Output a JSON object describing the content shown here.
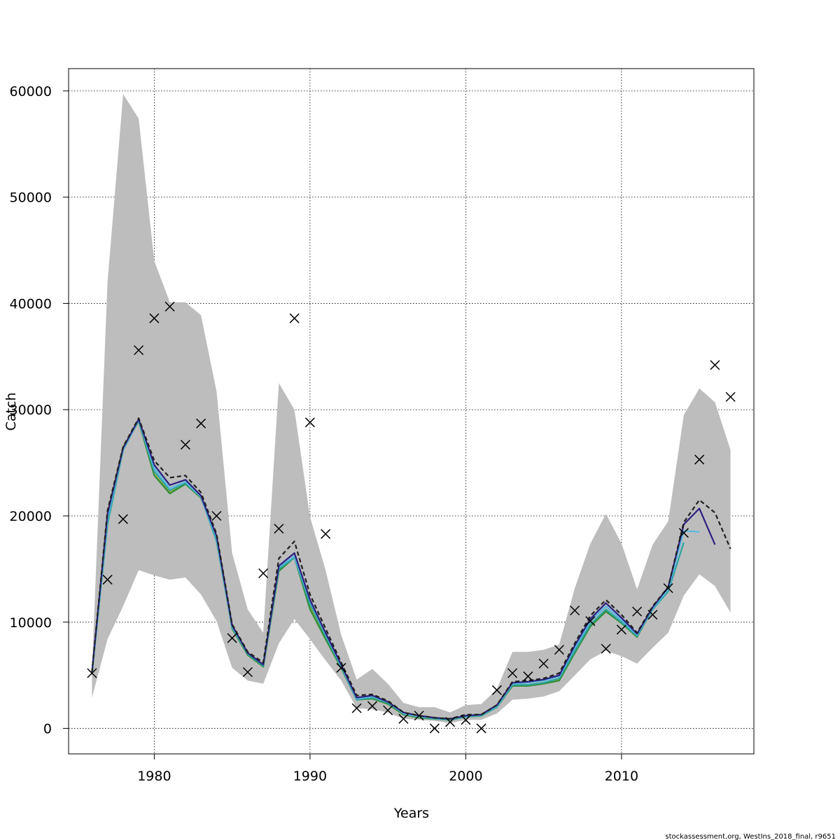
{
  "chart_data": {
    "type": "line",
    "xlabel": "Years",
    "ylabel": "Catch",
    "xlim": [
      1974.5,
      2018.5
    ],
    "ylim": [
      -2400,
      62100
    ],
    "x_ticks": [
      1980,
      1990,
      2000,
      2010
    ],
    "y_ticks": [
      0,
      10000,
      20000,
      30000,
      40000,
      50000,
      60000
    ],
    "grid": true,
    "band": {
      "x": [
        1976,
        1977,
        1978,
        1979,
        1980,
        1981,
        1982,
        1983,
        1984,
        1985,
        1986,
        1987,
        1988,
        1989,
        1990,
        1991,
        1992,
        1993,
        1994,
        1995,
        1996,
        1997,
        1998,
        1999,
        2000,
        2001,
        2002,
        2003,
        2004,
        2005,
        2006,
        2007,
        2008,
        2009,
        2010,
        2011,
        2012,
        2013,
        2014,
        2015,
        2016,
        2017
      ],
      "upper": [
        5500,
        42000,
        59700,
        57400,
        44000,
        40100,
        40100,
        38900,
        31700,
        16500,
        11200,
        9000,
        32500,
        30000,
        19900,
        14900,
        8800,
        4600,
        5600,
        4200,
        2400,
        2000,
        2000,
        1500,
        2200,
        2300,
        3700,
        7200,
        7200,
        7400,
        7900,
        13200,
        17400,
        20200,
        17400,
        13100,
        17300,
        19500,
        29500,
        32000,
        30700,
        26200
      ],
      "lower": [
        2900,
        8400,
        11500,
        14900,
        14400,
        14000,
        14200,
        12600,
        10100,
        5700,
        4500,
        4200,
        8000,
        10300,
        8400,
        6400,
        4500,
        1900,
        1800,
        1500,
        900,
        800,
        700,
        500,
        800,
        800,
        1400,
        2700,
        2800,
        3000,
        3500,
        5000,
        6500,
        7300,
        6800,
        6100,
        7600,
        9000,
        12500,
        14500,
        13400,
        10900
      ]
    },
    "series": [
      {
        "color": "#1f1f1f",
        "style": "dashed",
        "x": [
          1976,
          1977,
          1978,
          1979,
          1980,
          1981,
          1982,
          1983,
          1984,
          1985,
          1986,
          1987,
          1988,
          1989,
          1990,
          1991,
          1992,
          1993,
          1994,
          1995,
          1996,
          1997,
          1998,
          1999,
          2000,
          2001,
          2002,
          2003,
          2004,
          2005,
          2006,
          2007,
          2008,
          2009,
          2010,
          2011,
          2012,
          2013,
          2014,
          2015,
          2016,
          2017
        ],
        "values": [
          5300,
          20500,
          26500,
          29200,
          25200,
          23600,
          23800,
          22200,
          18300,
          9800,
          7200,
          6200,
          16000,
          17600,
          12600,
          9400,
          6200,
          3100,
          3200,
          2600,
          1500,
          1200,
          1000,
          900,
          1300,
          1300,
          2200,
          4400,
          4500,
          4700,
          5200,
          8000,
          10600,
          12100,
          10700,
          9000,
          11500,
          13300,
          19400,
          21500,
          20300,
          16900
        ]
      },
      {
        "color": "#2a1f7f",
        "style": "solid",
        "x": [
          1976,
          1977,
          1978,
          1979,
          1980,
          1981,
          1982,
          1983,
          1984,
          1985,
          1986,
          1987,
          1988,
          1989,
          1990,
          1991,
          1992,
          1993,
          1994,
          1995,
          1996,
          1997,
          1998,
          1999,
          2000,
          2001,
          2002,
          2003,
          2004,
          2005,
          2006,
          2007,
          2008,
          2009,
          2010,
          2011,
          2012,
          2013,
          2014,
          2015,
          2016
        ],
        "values": [
          5300,
          20200,
          26400,
          29100,
          24800,
          22900,
          23400,
          21900,
          18100,
          9700,
          7100,
          6000,
          15300,
          16500,
          12100,
          9000,
          6000,
          2900,
          3100,
          2500,
          1500,
          1200,
          1000,
          900,
          1200,
          1300,
          2200,
          4300,
          4400,
          4600,
          5000,
          7800,
          10300,
          11800,
          10400,
          8900,
          11400,
          13300,
          19200,
          20700,
          17300
        ]
      },
      {
        "color": "#5ab8e4",
        "style": "solid",
        "x": [
          1976,
          1977,
          1978,
          1979,
          1980,
          1981,
          1982,
          1983,
          1984,
          1985,
          1986,
          1987,
          1988,
          1989,
          1990,
          1991,
          1992,
          1993,
          1994,
          1995,
          1996,
          1997,
          1998,
          1999,
          2000,
          2001,
          2002,
          2003,
          2004,
          2005,
          2006,
          2007,
          2008,
          2009,
          2010,
          2011,
          2012,
          2013,
          2014,
          2015
        ],
        "values": [
          5200,
          19800,
          26300,
          29000,
          24500,
          22600,
          23200,
          21800,
          17900,
          9600,
          7100,
          6000,
          15200,
          16200,
          12000,
          8900,
          5900,
          2800,
          3000,
          2500,
          1400,
          1100,
          1000,
          900,
          1200,
          1300,
          2100,
          4200,
          4300,
          4500,
          4900,
          7600,
          10100,
          11500,
          10200,
          8800,
          11300,
          13100,
          18600,
          18500
        ]
      },
      {
        "color": "#2ca6a4",
        "style": "solid",
        "x": [
          1976,
          1977,
          1978,
          1979,
          1980,
          1981,
          1982,
          1983,
          1984,
          1985,
          1986,
          1987,
          1988,
          1989,
          1990,
          1991,
          1992,
          1993,
          1994,
          1995,
          1996,
          1997,
          1998,
          1999,
          2000,
          2001,
          2002,
          2003,
          2004,
          2005,
          2006,
          2007,
          2008,
          2009,
          2010,
          2011,
          2012,
          2013,
          2014
        ],
        "values": [
          5200,
          19200,
          26200,
          29000,
          24200,
          22400,
          23100,
          21800,
          17600,
          9500,
          7000,
          5900,
          15000,
          16100,
          11700,
          8700,
          5800,
          2700,
          2900,
          2400,
          1400,
          1100,
          900,
          800,
          1100,
          1200,
          2000,
          4100,
          4100,
          4300,
          4700,
          7300,
          9800,
          11200,
          10000,
          8700,
          11200,
          12900,
          17500
        ]
      },
      {
        "color": "#2f8f3a",
        "style": "solid",
        "x": [
          1976,
          1977,
          1978,
          1979,
          1980,
          1981,
          1982,
          1983,
          1984,
          1985,
          1986,
          1987,
          1988,
          1989,
          1990,
          1991,
          1992,
          1993,
          1994,
          1995,
          1996,
          1997,
          1998,
          1999,
          2000,
          2001,
          2002,
          2003,
          2004,
          2005,
          2006,
          2007,
          2008,
          2009,
          2010,
          2011,
          2012,
          2013
        ],
        "values": [
          5100,
          20000,
          26400,
          28900,
          23800,
          22100,
          23000,
          21700,
          18000,
          9400,
          6900,
          5800,
          14800,
          16100,
          11200,
          8400,
          5700,
          2700,
          2800,
          2300,
          1300,
          1000,
          900,
          800,
          1100,
          1200,
          2000,
          4000,
          4000,
          4200,
          4500,
          7100,
          9600,
          11000,
          9900,
          8600,
          11300,
          13200
        ]
      },
      {
        "color": "#a7a41c",
        "style": "solid",
        "x": [
          1976,
          1977,
          1978,
          1979,
          1980,
          1981,
          1982,
          1983,
          1984,
          1985,
          1986,
          1987,
          1988,
          1989,
          1990,
          1991,
          1992,
          1993,
          1994,
          1995,
          1996,
          1997,
          1998,
          1999,
          2000,
          2001,
          2002,
          2003,
          2004,
          2005,
          2006,
          2007,
          2008,
          2009,
          2010,
          2011,
          2012
        ],
        "values": [
          5100,
          20300,
          26500,
          29000,
          23900,
          22200,
          23100,
          21800,
          18100,
          9500,
          7000,
          5800,
          14900,
          16200,
          11400,
          8500,
          5800,
          2700,
          2900,
          2400,
          1400,
          1100,
          900,
          800,
          1100,
          1200,
          2000,
          4100,
          4100,
          4300,
          4600,
          7200,
          9700,
          11100,
          10000,
          8700,
          11200
        ]
      }
    ],
    "observed": {
      "marker": "x",
      "x": [
        1976,
        1977,
        1978,
        1979,
        1980,
        1981,
        1982,
        1983,
        1984,
        1985,
        1986,
        1987,
        1988,
        1989,
        1990,
        1991,
        1992,
        1993,
        1994,
        1995,
        1996,
        1997,
        1998,
        1999,
        2000,
        2001,
        2002,
        2003,
        2004,
        2005,
        2006,
        2007,
        2008,
        2009,
        2010,
        2011,
        2012,
        2013,
        2014,
        2015,
        2016,
        2017
      ],
      "values": [
        5200,
        14000,
        19700,
        35600,
        38600,
        39700,
        26700,
        28700,
        20000,
        8500,
        5300,
        14600,
        18800,
        38600,
        28800,
        18300,
        5700,
        1900,
        2100,
        1700,
        900,
        1200,
        0,
        600,
        800,
        0,
        3600,
        5200,
        4900,
        6100,
        7400,
        11100,
        10100,
        7500,
        9300,
        11000,
        10700,
        13200,
        18400,
        25300,
        34200,
        31200
      ]
    },
    "credit": "stockassessment.org, WestIns_2018_final, r9651"
  }
}
